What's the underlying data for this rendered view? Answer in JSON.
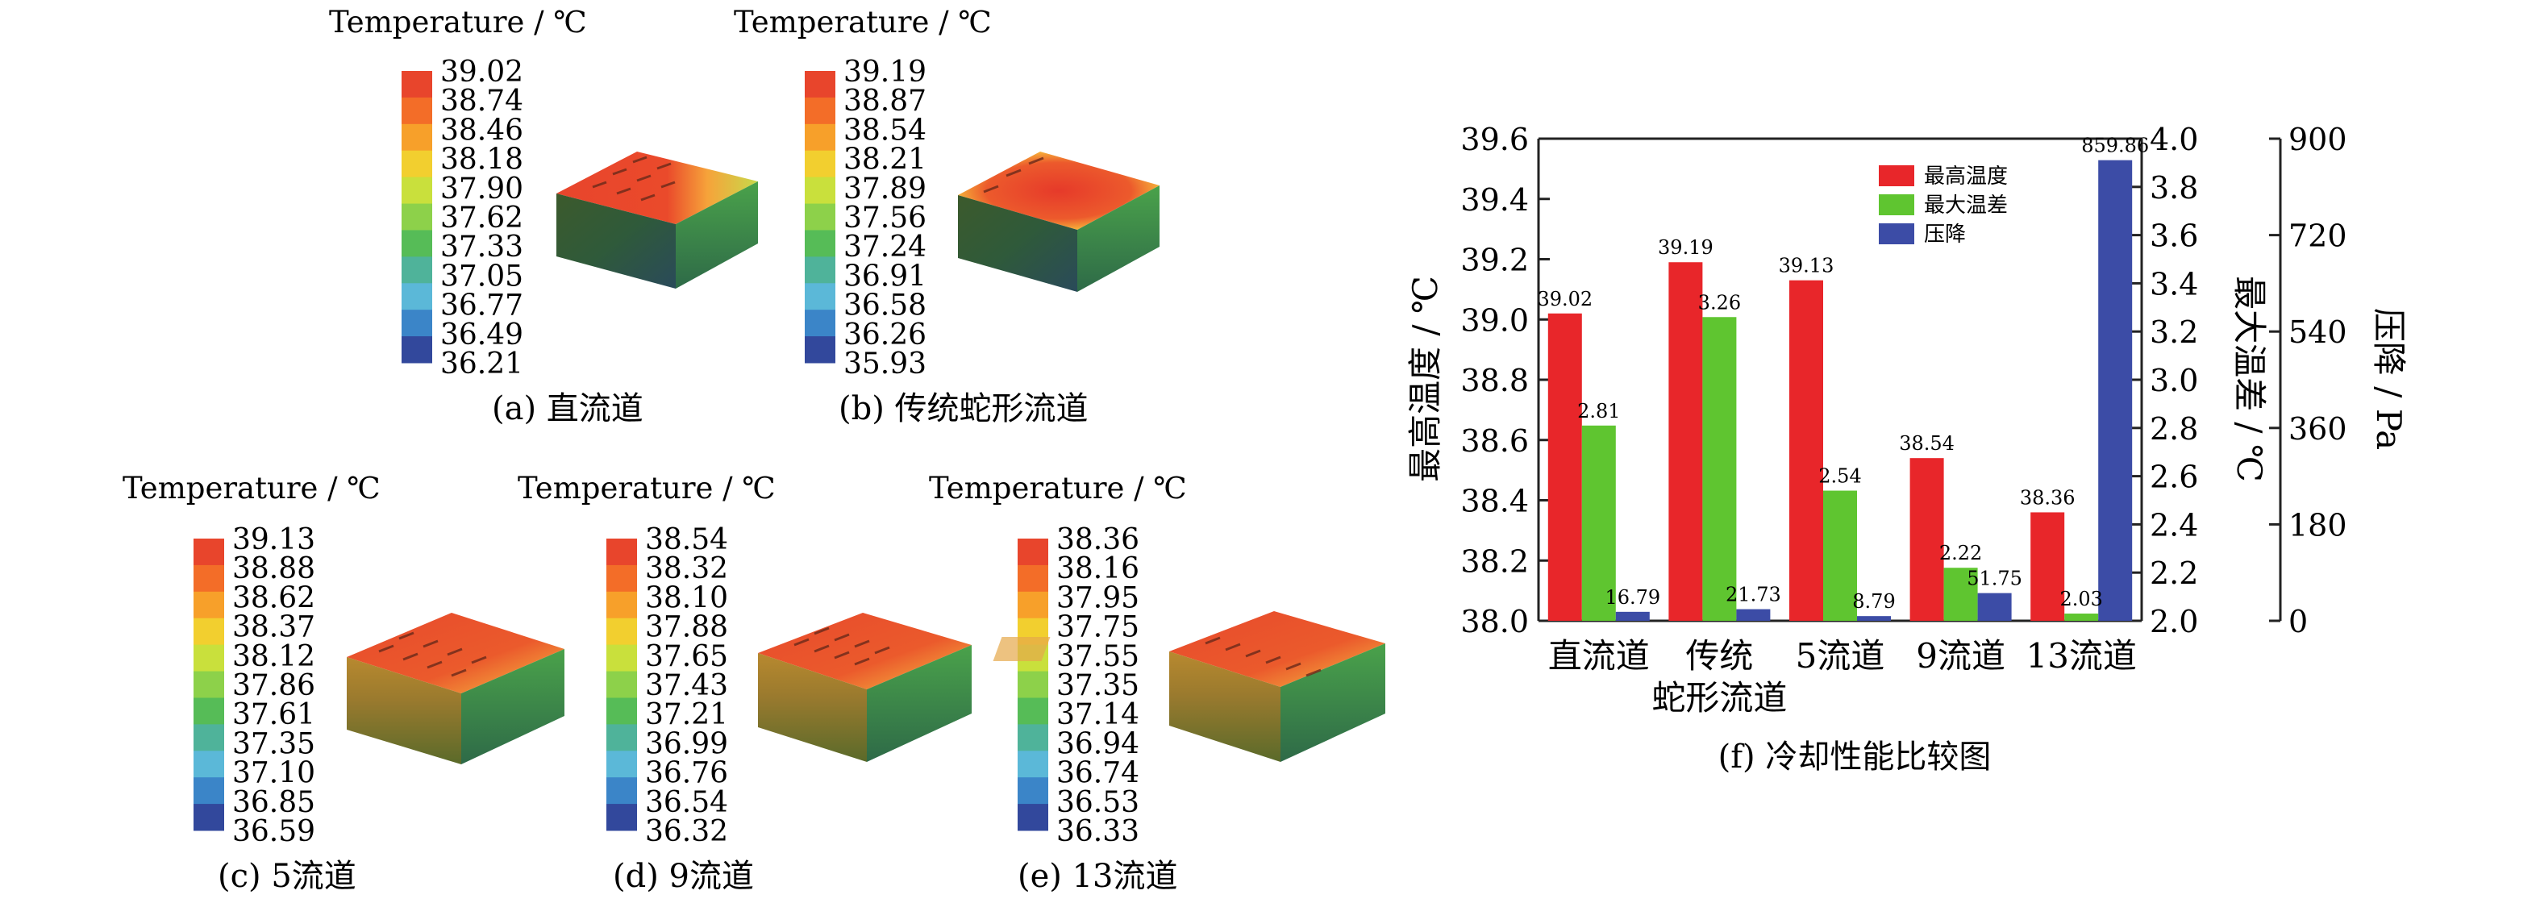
{
  "colorbars": [
    {
      "caption": "(a) 直流道",
      "title": "Temperature / ℃",
      "ticks": [
        "39.02",
        "38.74",
        "38.46",
        "38.18",
        "37.90",
        "37.62",
        "37.33",
        "37.05",
        "36.77",
        "36.49",
        "36.21"
      ]
    },
    {
      "caption": "(b) 传统蛇形流道",
      "title": "Temperature / ℃",
      "ticks": [
        "39.19",
        "38.87",
        "38.54",
        "38.21",
        "37.89",
        "37.56",
        "37.24",
        "36.91",
        "36.58",
        "36.26",
        "35.93"
      ]
    },
    {
      "caption": "(c) 5流道",
      "title": "Temperature / ℃",
      "ticks": [
        "39.13",
        "38.88",
        "38.62",
        "38.37",
        "38.12",
        "37.86",
        "37.61",
        "37.35",
        "37.10",
        "36.85",
        "36.59"
      ]
    },
    {
      "caption": "(d) 9流道",
      "title": "Temperature / ℃",
      "ticks": [
        "38.54",
        "38.32",
        "38.10",
        "37.88",
        "37.65",
        "37.43",
        "37.21",
        "36.99",
        "36.76",
        "36.54",
        "36.32"
      ]
    },
    {
      "caption": "(e) 13流道",
      "title": "Temperature / ℃",
      "ticks": [
        "38.36",
        "38.16",
        "37.95",
        "37.75",
        "37.55",
        "37.35",
        "37.14",
        "36.94",
        "36.74",
        "36.53",
        "36.33"
      ]
    }
  ],
  "colorbar_colors": [
    "#e8452c",
    "#f36d28",
    "#f7a02a",
    "#f2cf2f",
    "#c9e03c",
    "#8dd14a",
    "#56bc57",
    "#4fb39a",
    "#5bb8d8",
    "#3b85c8",
    "#32489c"
  ],
  "chart_data": {
    "type": "bar",
    "title": "(f) 冷却性能比较图",
    "categories": [
      "直流道",
      "传统\n蛇形流道",
      "5流道",
      "9流道",
      "13流道"
    ],
    "series": [
      {
        "name": "最高温度",
        "axis": "left",
        "color": "#e8262a",
        "values": [
          39.02,
          39.19,
          39.13,
          38.54,
          38.36
        ],
        "labels": [
          "39.02",
          "39.19",
          "39.13",
          "38.54",
          "38.36"
        ]
      },
      {
        "name": "最大温差",
        "axis": "right1",
        "color": "#5fc530",
        "values": [
          2.81,
          3.26,
          2.54,
          2.22,
          2.03
        ],
        "labels": [
          "2.81",
          "3.26",
          "2.54",
          "2.22",
          "2.03"
        ]
      },
      {
        "name": "压降",
        "axis": "right2",
        "color": "#3c4ca6",
        "values": [
          16.79,
          21.73,
          8.79,
          51.75,
          859.86
        ],
        "labels": [
          "16.79",
          "21.73",
          "8.79",
          "51.75",
          "859.86"
        ]
      }
    ],
    "axes": {
      "left": {
        "label": "最高温度 / ℃",
        "range": [
          38.0,
          39.6
        ],
        "ticks": [
          "38.0",
          "38.2",
          "38.4",
          "38.6",
          "38.8",
          "39.0",
          "39.2",
          "39.4",
          "39.6"
        ]
      },
      "right1": {
        "label": "最大温差 / ℃",
        "range": [
          2.0,
          4.0
        ],
        "ticks": [
          "2.0",
          "2.2",
          "2.4",
          "2.6",
          "2.8",
          "3.0",
          "3.2",
          "3.4",
          "3.6",
          "3.8",
          "4.0"
        ]
      },
      "right2": {
        "label": "压降 / Pa",
        "range": [
          0,
          900
        ],
        "ticks": [
          "0",
          "180",
          "360",
          "540",
          "720",
          "900"
        ]
      }
    },
    "legend": "top-right",
    "grid": false
  }
}
